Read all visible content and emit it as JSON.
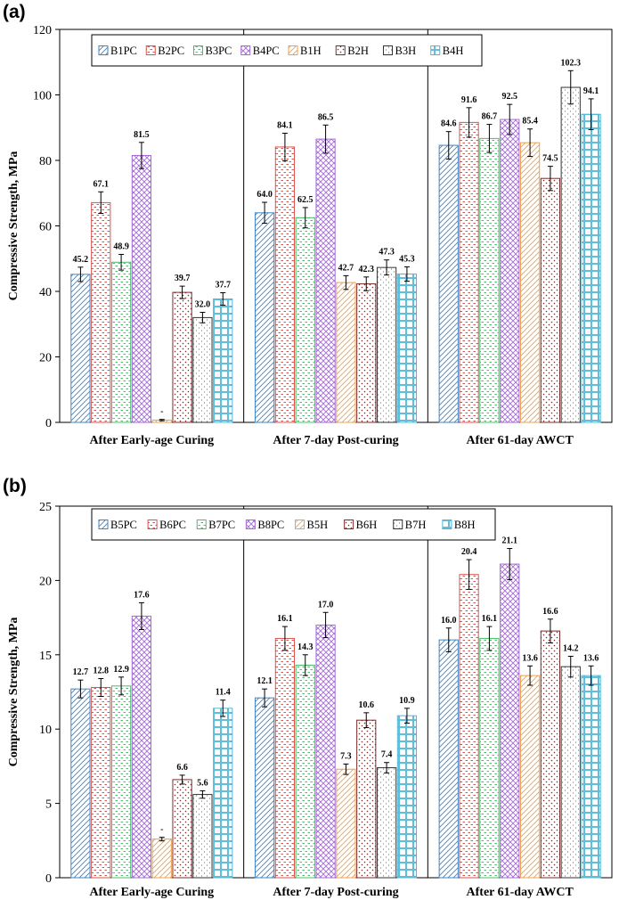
{
  "chart_data": [
    {
      "type": "bar",
      "panel_label": "(a)",
      "ylabel": "Compressive Strength,  MPa",
      "ylim": [
        0,
        120
      ],
      "yticks": [
        0,
        20,
        40,
        60,
        80,
        100,
        120
      ],
      "tick_labels": [
        "0",
        "20",
        "40",
        "60",
        "80",
        "100",
        "120"
      ],
      "categories": [
        "After Early-age Curing",
        "After 7-day Post-curing",
        "After 61-day AWCT"
      ],
      "series": [
        {
          "name": "B1PC",
          "color": "#3d86c6",
          "pattern": "diag",
          "values": [
            45.2,
            64.0,
            84.6
          ],
          "errors": [
            2.2,
            3.2,
            4.2
          ],
          "labels": [
            "45.2",
            "64.0",
            "84.6"
          ]
        },
        {
          "name": "B2PC",
          "color": "#d9534f",
          "pattern": "dash",
          "values": [
            67.1,
            84.1,
            91.6
          ],
          "errors": [
            3.3,
            4.2,
            4.5
          ],
          "labels": [
            "67.1",
            "84.1",
            "91.6"
          ]
        },
        {
          "name": "B3PC",
          "color": "#49c06a",
          "pattern": "dash",
          "values": [
            48.9,
            62.5,
            86.7
          ],
          "errors": [
            2.4,
            3.1,
            4.3
          ],
          "labels": [
            "48.9",
            "62.5",
            "86.7"
          ]
        },
        {
          "name": "B4PC",
          "color": "#a46ad6",
          "pattern": "cross",
          "values": [
            81.5,
            86.5,
            92.5
          ],
          "errors": [
            4.0,
            4.3,
            4.6
          ],
          "labels": [
            "81.5",
            "86.5",
            "92.5"
          ]
        },
        {
          "name": "B1H",
          "color": "#f0a04b",
          "pattern": "diag",
          "values": [
            0.7,
            42.7,
            85.4
          ],
          "errors": [
            0.2,
            2.1,
            4.2
          ],
          "labels": [
            "-",
            "42.7",
            "85.4"
          ]
        },
        {
          "name": "B2H",
          "color": "#7a2b2b",
          "pattern": "dots",
          "values": [
            39.7,
            42.3,
            74.5
          ],
          "errors": [
            1.9,
            2.1,
            3.7
          ],
          "labels": [
            "39.7",
            "42.3",
            "74.5"
          ]
        },
        {
          "name": "B3H",
          "color": "#333333",
          "pattern": "sparse",
          "values": [
            32.0,
            47.3,
            102.3
          ],
          "errors": [
            1.6,
            2.3,
            5.1
          ],
          "labels": [
            "32.0",
            "47.3",
            "102.3"
          ]
        },
        {
          "name": "B4H",
          "color": "#4fb8d8",
          "pattern": "grid",
          "values": [
            37.7,
            45.3,
            94.1
          ],
          "errors": [
            1.9,
            2.2,
            4.7
          ],
          "labels": [
            "37.7",
            "45.3",
            "94.1"
          ]
        }
      ],
      "legend_position": "top-left"
    },
    {
      "type": "bar",
      "panel_label": "(b)",
      "ylabel": "Compressive Strength, MPa",
      "ylim": [
        0,
        25
      ],
      "yticks": [
        0,
        5,
        10,
        15,
        20,
        25
      ],
      "tick_labels": [
        "0",
        "5",
        "10",
        "15",
        "20",
        "25"
      ],
      "categories": [
        "After Early-age Curing",
        "After 7-day Post-curing",
        "After 61-day AWCT"
      ],
      "series": [
        {
          "name": "B5PC",
          "color": "#3d86c6",
          "pattern": "diag",
          "values": [
            12.7,
            12.1,
            16.0
          ],
          "errors": [
            0.6,
            0.6,
            0.8
          ],
          "labels": [
            "12.7",
            "12.1",
            "16.0"
          ]
        },
        {
          "name": "B6PC",
          "color": "#d9534f",
          "pattern": "dash",
          "values": [
            12.8,
            16.1,
            20.4
          ],
          "errors": [
            0.6,
            0.8,
            1.0
          ],
          "labels": [
            "12.8",
            "16.1",
            "20.4"
          ]
        },
        {
          "name": "B7PC",
          "color": "#49c06a",
          "pattern": "dash",
          "values": [
            12.9,
            14.3,
            16.1
          ],
          "errors": [
            0.6,
            0.7,
            0.8
          ],
          "labels": [
            "12.9",
            "14.3",
            "16.1"
          ]
        },
        {
          "name": "B8PC",
          "color": "#a46ad6",
          "pattern": "cross",
          "values": [
            17.6,
            17.0,
            21.1
          ],
          "errors": [
            0.9,
            0.85,
            1.05
          ],
          "labels": [
            "17.6",
            "17.0",
            "21.1"
          ]
        },
        {
          "name": "B5H",
          "color": "#f0a04b",
          "pattern": "diag",
          "values": [
            2.6,
            7.3,
            13.6
          ],
          "errors": [
            0.12,
            0.35,
            0.65
          ],
          "labels": [
            "-",
            "7.3",
            "13.6"
          ]
        },
        {
          "name": "B6H",
          "color": "#7a2b2b",
          "pattern": "dots",
          "values": [
            6.6,
            10.6,
            16.6
          ],
          "errors": [
            0.3,
            0.5,
            0.8
          ],
          "labels": [
            "6.6",
            "10.6",
            "16.6"
          ]
        },
        {
          "name": "B7H",
          "color": "#333333",
          "pattern": "sparse",
          "values": [
            5.6,
            7.4,
            14.2
          ],
          "errors": [
            0.25,
            0.35,
            0.7
          ],
          "labels": [
            "5.6",
            "7.4",
            "14.2"
          ]
        },
        {
          "name": "B8H",
          "color": "#4fb8d8",
          "pattern": "grid",
          "values": [
            11.4,
            10.9,
            13.6
          ],
          "errors": [
            0.55,
            0.5,
            0.65
          ],
          "labels": [
            "11.4",
            "10.9",
            "13.6"
          ]
        }
      ],
      "legend_position": "top-left"
    }
  ]
}
